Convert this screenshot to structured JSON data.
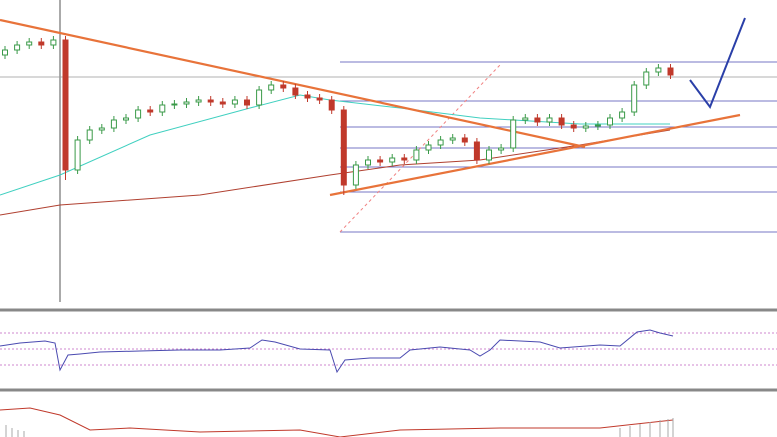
{
  "chart_data": {
    "type": "candlestick",
    "open": [
      250,
      255,
      260,
      263,
      260,
      265,
      135,
      165,
      175,
      177,
      185,
      187,
      195,
      193,
      200,
      201,
      203,
      205,
      203,
      201,
      205,
      200,
      215,
      220,
      217,
      210,
      207,
      205,
      195,
      120,
      140,
      145,
      143,
      147,
      145,
      155,
      160,
      165,
      167,
      163,
      145,
      155,
      157,
      185,
      187,
      183,
      187,
      180,
      177,
      179,
      180,
      187,
      193,
      220,
      233,
      237
    ],
    "high": [
      259,
      264,
      267,
      267,
      269,
      269,
      169,
      179,
      181,
      189,
      191,
      199,
      199,
      204,
      205,
      207,
      209,
      209,
      207,
      209,
      209,
      219,
      224,
      224,
      221,
      214,
      211,
      209,
      199,
      144,
      149,
      149,
      151,
      151,
      159,
      164,
      169,
      171,
      171,
      167,
      159,
      161,
      189,
      191,
      191,
      191,
      191,
      184,
      183,
      184,
      191,
      197,
      224,
      237,
      241,
      241
    ],
    "low": [
      246,
      251,
      256,
      256,
      256,
      125,
      131,
      161,
      171,
      173,
      181,
      183,
      189,
      189,
      196,
      197,
      199,
      199,
      197,
      197,
      196,
      196,
      211,
      213,
      206,
      203,
      201,
      191,
      110,
      116,
      136,
      139,
      139,
      141,
      141,
      151,
      156,
      161,
      159,
      141,
      141,
      151,
      153,
      181,
      179,
      179,
      176,
      173,
      173,
      175,
      176,
      183,
      189,
      216,
      229,
      226
    ],
    "close": [
      255,
      260,
      263,
      260,
      265,
      135,
      165,
      175,
      177,
      185,
      187,
      195,
      193,
      200,
      201,
      203,
      205,
      203,
      201,
      205,
      200,
      215,
      220,
      217,
      210,
      207,
      205,
      195,
      120,
      140,
      145,
      143,
      147,
      145,
      155,
      160,
      165,
      167,
      163,
      145,
      155,
      157,
      185,
      187,
      183,
      187,
      180,
      177,
      179,
      180,
      187,
      193,
      220,
      233,
      237,
      230
    ],
    "ylim": [
      0,
      305
    ],
    "up_color": "#3a9a48",
    "down_color": "#c0392b"
  }
}
